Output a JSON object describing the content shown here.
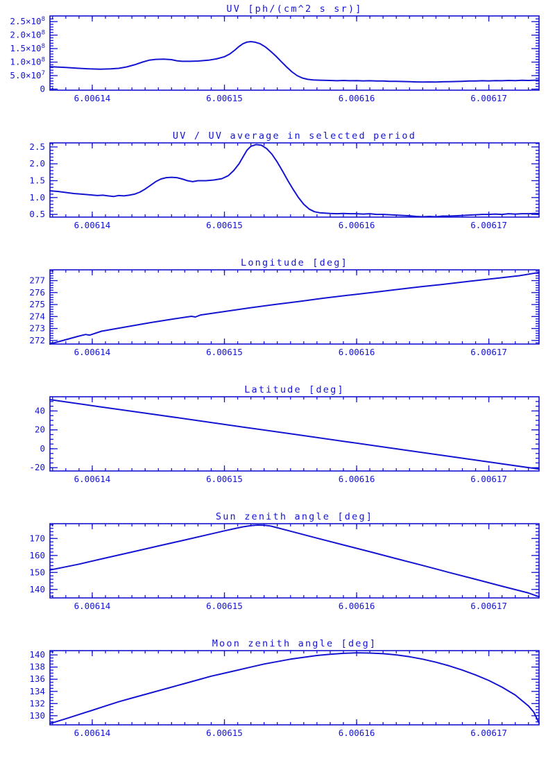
{
  "page": {
    "background": "#ffffff",
    "accent": "#1414d2"
  },
  "chart_data": [
    {
      "id": "uv",
      "type": "line",
      "title": "UV [ph/(cm^2 s sr)]",
      "xlim": [
        6.0061368,
        6.0061738
      ],
      "ylim": [
        -4000000,
        271000000
      ],
      "x_major": [
        6.00614,
        6.00615,
        6.00616,
        6.00617
      ],
      "x_labels": [
        "6.00614",
        "6.00615",
        "6.00616",
        "6.00617"
      ],
      "x_minor_step": 1e-06,
      "y_major": [
        0,
        50000000,
        100000000,
        150000000,
        200000000,
        250000000
      ],
      "y_labels": [
        "0",
        "5.0×10^7",
        "1.0×10^8",
        "1.5×10^8",
        "2.0×10^8",
        "2.5×10^8"
      ],
      "y_minor_step": 10000000,
      "points": [
        [
          6.0061368,
          83000000.0
        ],
        [
          6.006138,
          80000000.0
        ],
        [
          6.006139,
          77000000.0
        ],
        [
          6.0061398,
          75000000.0
        ],
        [
          6.0061406,
          74000000.0
        ],
        [
          6.0061414,
          75000000.0
        ],
        [
          6.006142,
          77000000.0
        ],
        [
          6.0061426,
          82000000.0
        ],
        [
          6.0061432,
          90000000.0
        ],
        [
          6.0061438,
          100000000.0
        ],
        [
          6.0061443,
          107000000.0
        ],
        [
          6.0061448,
          110000000.0
        ],
        [
          6.0061454,
          111000000.0
        ],
        [
          6.006146,
          109000000.0
        ],
        [
          6.0061464,
          105000000.0
        ],
        [
          6.0061468,
          103000000.0
        ],
        [
          6.0061474,
          103000000.0
        ],
        [
          6.006148,
          104000000.0
        ],
        [
          6.0061488,
          107000000.0
        ],
        [
          6.0061494,
          112000000.0
        ],
        [
          6.00615,
          120000000.0
        ],
        [
          6.0061504,
          130000000.0
        ],
        [
          6.0061508,
          145000000.0
        ],
        [
          6.0061511,
          158000000.0
        ],
        [
          6.0061514,
          168000000.0
        ],
        [
          6.0061517,
          174000000.0
        ],
        [
          6.006152,
          176000000.0
        ],
        [
          6.0061523,
          174000000.0
        ],
        [
          6.0061527,
          168000000.0
        ],
        [
          6.0061531,
          156000000.0
        ],
        [
          6.0061535,
          140000000.0
        ],
        [
          6.0061539,
          122000000.0
        ],
        [
          6.0061543,
          102000000.0
        ],
        [
          6.0061547,
          82000000.0
        ],
        [
          6.0061551,
          64000000.0
        ],
        [
          6.0061555,
          50000000.0
        ],
        [
          6.0061559,
          41000000.0
        ],
        [
          6.0061563,
          36000000.0
        ],
        [
          6.0061567,
          34000000.0
        ],
        [
          6.0061572,
          33000000.0
        ],
        [
          6.006158,
          32000000.0
        ],
        [
          6.0061585,
          31000000.0
        ],
        [
          6.006159,
          32000000.0
        ],
        [
          6.0061595,
          31000000.0
        ],
        [
          6.00616,
          31500000.0
        ],
        [
          6.0061605,
          30500000.0
        ],
        [
          6.006161,
          31000000.0
        ],
        [
          6.0061615,
          30000000.0
        ],
        [
          6.006162,
          30000000.0
        ],
        [
          6.0061625,
          29000000.0
        ],
        [
          6.006163,
          29000000.0
        ],
        [
          6.0061635,
          28000000.0
        ],
        [
          6.006164,
          27500000.0
        ],
        [
          6.0061645,
          26500000.0
        ],
        [
          6.006165,
          26000000.0
        ],
        [
          6.0061655,
          26500000.0
        ],
        [
          6.006166,
          26000000.0
        ],
        [
          6.0061665,
          27000000.0
        ],
        [
          6.006167,
          27500000.0
        ],
        [
          6.0061675,
          28000000.0
        ],
        [
          6.006168,
          29000000.0
        ],
        [
          6.0061685,
          30000000.0
        ],
        [
          6.006169,
          30000000.0
        ],
        [
          6.0061695,
          31000000.0
        ],
        [
          6.00617,
          30500000.0
        ],
        [
          6.0061705,
          31500000.0
        ],
        [
          6.006171,
          31000000.0
        ],
        [
          6.0061715,
          32000000.0
        ],
        [
          6.006172,
          31500000.0
        ],
        [
          6.0061725,
          32500000.0
        ],
        [
          6.006173,
          32000000.0
        ],
        [
          6.0061735,
          33000000.0
        ],
        [
          6.0061738,
          33000000.0
        ]
      ]
    },
    {
      "id": "uv-ratio",
      "type": "line",
      "title": "UV / UV average in selected period",
      "xlim": [
        6.0061368,
        6.0061738
      ],
      "ylim": [
        0.42,
        2.62
      ],
      "x_major": [
        6.00614,
        6.00615,
        6.00616,
        6.00617
      ],
      "x_labels": [
        "6.00614",
        "6.00615",
        "6.00616",
        "6.00617"
      ],
      "x_minor_step": 1e-06,
      "y_major": [
        0.5,
        1.0,
        1.5,
        2.0,
        2.5
      ],
      "y_labels": [
        "0.5",
        "1.0",
        "1.5",
        "2.0",
        "2.5"
      ],
      "y_minor_step": 0.1,
      "points": [
        [
          6.0061368,
          1.2
        ],
        [
          6.0061374,
          1.18
        ],
        [
          6.006138,
          1.15
        ],
        [
          6.0061386,
          1.12
        ],
        [
          6.0061392,
          1.1
        ],
        [
          6.0061398,
          1.08
        ],
        [
          6.0061404,
          1.06
        ],
        [
          6.0061408,
          1.07
        ],
        [
          6.0061412,
          1.05
        ],
        [
          6.0061416,
          1.03
        ],
        [
          6.006142,
          1.06
        ],
        [
          6.0061424,
          1.05
        ],
        [
          6.0061428,
          1.07
        ],
        [
          6.0061432,
          1.1
        ],
        [
          6.0061436,
          1.16
        ],
        [
          6.006144,
          1.25
        ],
        [
          6.0061444,
          1.36
        ],
        [
          6.0061448,
          1.47
        ],
        [
          6.0061452,
          1.55
        ],
        [
          6.0061456,
          1.59
        ],
        [
          6.006146,
          1.6
        ],
        [
          6.0061464,
          1.59
        ],
        [
          6.0061468,
          1.55
        ],
        [
          6.0061472,
          1.5
        ],
        [
          6.0061476,
          1.47
        ],
        [
          6.006148,
          1.5
        ],
        [
          6.0061486,
          1.5
        ],
        [
          6.0061492,
          1.52
        ],
        [
          6.0061498,
          1.56
        ],
        [
          6.0061503,
          1.65
        ],
        [
          6.0061507,
          1.8
        ],
        [
          6.0061511,
          2.0
        ],
        [
          6.0061514,
          2.2
        ],
        [
          6.0061517,
          2.4
        ],
        [
          6.006152,
          2.52
        ],
        [
          6.0061524,
          2.57
        ],
        [
          6.0061528,
          2.55
        ],
        [
          6.0061532,
          2.45
        ],
        [
          6.0061536,
          2.28
        ],
        [
          6.006154,
          2.05
        ],
        [
          6.0061544,
          1.78
        ],
        [
          6.0061548,
          1.5
        ],
        [
          6.0061552,
          1.24
        ],
        [
          6.0061556,
          1.0
        ],
        [
          6.006156,
          0.8
        ],
        [
          6.0061564,
          0.66
        ],
        [
          6.0061568,
          0.58
        ],
        [
          6.0061572,
          0.55
        ],
        [
          6.0061576,
          0.54
        ],
        [
          6.006158,
          0.53
        ],
        [
          6.0061585,
          0.52
        ],
        [
          6.006159,
          0.53
        ],
        [
          6.0061595,
          0.52
        ],
        [
          6.00616,
          0.52
        ],
        [
          6.0061605,
          0.51
        ],
        [
          6.006161,
          0.52
        ],
        [
          6.0061615,
          0.5
        ],
        [
          6.006162,
          0.5
        ],
        [
          6.0061625,
          0.49
        ],
        [
          6.006163,
          0.48
        ],
        [
          6.0061635,
          0.47
        ],
        [
          6.006164,
          0.46
        ],
        [
          6.0061645,
          0.44
        ],
        [
          6.006165,
          0.43
        ],
        [
          6.0061655,
          0.44
        ],
        [
          6.006166,
          0.43
        ],
        [
          6.0061665,
          0.45
        ],
        [
          6.006167,
          0.45
        ],
        [
          6.0061675,
          0.46
        ],
        [
          6.006168,
          0.47
        ],
        [
          6.0061685,
          0.48
        ],
        [
          6.006169,
          0.49
        ],
        [
          6.0061695,
          0.5
        ],
        [
          6.00617,
          0.5
        ],
        [
          6.0061705,
          0.51
        ],
        [
          6.006171,
          0.5
        ],
        [
          6.0061715,
          0.52
        ],
        [
          6.006172,
          0.51
        ],
        [
          6.0061725,
          0.52
        ],
        [
          6.006173,
          0.52
        ],
        [
          6.0061735,
          0.53
        ],
        [
          6.0061738,
          0.53
        ]
      ]
    },
    {
      "id": "longitude",
      "type": "line",
      "title": "Longitude [deg]",
      "xlim": [
        6.0061368,
        6.0061738
      ],
      "ylim": [
        271.7,
        277.9
      ],
      "x_major": [
        6.00614,
        6.00615,
        6.00616,
        6.00617
      ],
      "x_labels": [
        "6.00614",
        "6.00615",
        "6.00616",
        "6.00617"
      ],
      "x_minor_step": 1e-06,
      "y_major": [
        272,
        273,
        274,
        275,
        276,
        277
      ],
      "y_labels": [
        "272",
        "273",
        "274",
        "275",
        "276",
        "277"
      ],
      "y_minor_step": 0.2,
      "points": [
        [
          6.0061368,
          271.7
        ],
        [
          6.0061389,
          272.34
        ],
        [
          6.0061395,
          272.5
        ],
        [
          6.0061398,
          272.44
        ],
        [
          6.0061407,
          272.77
        ],
        [
          6.0061426,
          273.14
        ],
        [
          6.0061444,
          273.49
        ],
        [
          6.0061463,
          273.82
        ],
        [
          6.0061475,
          274.02
        ],
        [
          6.0061478,
          273.96
        ],
        [
          6.0061482,
          274.13
        ],
        [
          6.00615,
          274.42
        ],
        [
          6.0061519,
          274.72
        ],
        [
          6.0061537,
          274.99
        ],
        [
          6.0061556,
          275.25
        ],
        [
          6.0061575,
          275.53
        ],
        [
          6.0061593,
          275.77
        ],
        [
          6.0061612,
          276.01
        ],
        [
          6.006163,
          276.25
        ],
        [
          6.0061649,
          276.49
        ],
        [
          6.0061668,
          276.72
        ],
        [
          6.0061686,
          276.95
        ],
        [
          6.0061705,
          277.18
        ],
        [
          6.0061723,
          277.41
        ],
        [
          6.0061738,
          277.68
        ]
      ]
    },
    {
      "id": "latitude",
      "type": "line",
      "title": "Latitude [deg]",
      "xlim": [
        6.0061368,
        6.0061738
      ],
      "ylim": [
        -23.5,
        55
      ],
      "x_major": [
        6.00614,
        6.00615,
        6.00616,
        6.00617
      ],
      "x_labels": [
        "6.00614",
        "6.00615",
        "6.00616",
        "6.00617"
      ],
      "x_minor_step": 1e-06,
      "y_major": [
        -20,
        0,
        20,
        40
      ],
      "y_labels": [
        "-20",
        "0",
        "20",
        "40"
      ],
      "y_minor_step": 5,
      "points": [
        [
          6.0061368,
          52.0
        ],
        [
          6.0061405,
          44.6
        ],
        [
          6.0061442,
          37.3
        ],
        [
          6.0061479,
          30.0
        ],
        [
          6.0061516,
          22.6
        ],
        [
          6.0061553,
          15.3
        ],
        [
          6.006159,
          7.9
        ],
        [
          6.0061627,
          0.6
        ],
        [
          6.0061664,
          -6.8
        ],
        [
          6.0061701,
          -14.2
        ],
        [
          6.0061738,
          -21.5
        ]
      ]
    },
    {
      "id": "sun-zenith",
      "type": "line",
      "title": "Sun zenith angle [deg]",
      "xlim": [
        6.0061368,
        6.0061738
      ],
      "ylim": [
        135,
        178.7
      ],
      "x_major": [
        6.00614,
        6.00615,
        6.00616,
        6.00617
      ],
      "x_labels": [
        "6.00614",
        "6.00615",
        "6.00616",
        "6.00617"
      ],
      "x_minor_step": 1e-06,
      "y_major": [
        140,
        150,
        160,
        170
      ],
      "y_labels": [
        "140",
        "150",
        "160",
        "170"
      ],
      "y_minor_step": 2,
      "points": [
        [
          6.0061368,
          151.4
        ],
        [
          6.006139,
          154.9
        ],
        [
          6.006141,
          158.5
        ],
        [
          6.006143,
          162.0
        ],
        [
          6.006145,
          165.6
        ],
        [
          6.006147,
          169.1
        ],
        [
          6.006149,
          172.7
        ],
        [
          6.00615,
          174.5
        ],
        [
          6.006151,
          176.2
        ],
        [
          6.0061515,
          177.0
        ],
        [
          6.006152,
          177.6
        ],
        [
          6.0061525,
          177.9
        ],
        [
          6.006153,
          177.8
        ],
        [
          6.0061535,
          177.3
        ],
        [
          6.006155,
          174.3
        ],
        [
          6.006157,
          170.2
        ],
        [
          6.006159,
          166.2
        ],
        [
          6.006161,
          162.2
        ],
        [
          6.006163,
          158.1
        ],
        [
          6.006165,
          154.1
        ],
        [
          6.006167,
          150.0
        ],
        [
          6.006169,
          146.0
        ],
        [
          6.006171,
          141.9
        ],
        [
          6.006173,
          137.9
        ],
        [
          6.0061738,
          135.7
        ]
      ]
    },
    {
      "id": "moon-zenith",
      "type": "line",
      "title": "Moon zenith angle [deg]",
      "xlim": [
        6.0061368,
        6.0061738
      ],
      "ylim": [
        128.5,
        140.7
      ],
      "x_major": [
        6.00614,
        6.00615,
        6.00616,
        6.00617
      ],
      "x_labels": [
        "6.00614",
        "6.00615",
        "6.00616",
        "6.00617"
      ],
      "x_minor_step": 1e-06,
      "y_major": [
        130,
        132,
        134,
        136,
        138,
        140
      ],
      "y_labels": [
        "130",
        "132",
        "134",
        "136",
        "138",
        "140"
      ],
      "y_minor_step": 0.5,
      "points": [
        [
          6.0061368,
          128.7
        ],
        [
          6.006138,
          129.5
        ],
        [
          6.006139,
          130.2
        ],
        [
          6.00614,
          130.9
        ],
        [
          6.006141,
          131.6
        ],
        [
          6.006142,
          132.3
        ],
        [
          6.006143,
          132.9
        ],
        [
          6.006144,
          133.5
        ],
        [
          6.006145,
          134.1
        ],
        [
          6.006146,
          134.7
        ],
        [
          6.006147,
          135.3
        ],
        [
          6.006148,
          135.9
        ],
        [
          6.006149,
          136.5
        ],
        [
          6.00615,
          137.0
        ],
        [
          6.006151,
          137.5
        ],
        [
          6.006152,
          138.0
        ],
        [
          6.006153,
          138.5
        ],
        [
          6.006154,
          138.9
        ],
        [
          6.006155,
          139.3
        ],
        [
          6.006156,
          139.6
        ],
        [
          6.006157,
          139.9
        ],
        [
          6.006158,
          140.1
        ],
        [
          6.006159,
          140.25
        ],
        [
          6.00616,
          140.35
        ],
        [
          6.006161,
          140.3
        ],
        [
          6.006162,
          140.2
        ],
        [
          6.006163,
          140.0
        ],
        [
          6.006164,
          139.7
        ],
        [
          6.006165,
          139.3
        ],
        [
          6.006166,
          138.8
        ],
        [
          6.006167,
          138.2
        ],
        [
          6.006168,
          137.5
        ],
        [
          6.006169,
          136.7
        ],
        [
          6.00617,
          135.8
        ],
        [
          6.006171,
          134.7
        ],
        [
          6.006172,
          133.4
        ],
        [
          6.006173,
          131.6
        ],
        [
          6.0061734,
          130.6
        ],
        [
          6.0061738,
          128.8
        ]
      ]
    }
  ]
}
